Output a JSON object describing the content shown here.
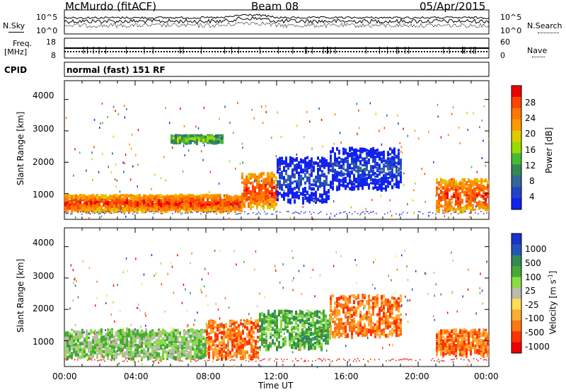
{
  "header": {
    "station": "McMurdo (fitACF)",
    "beam": "Beam 08",
    "date": "05/Apr/2015"
  },
  "noise_panel": {
    "left_label": "N.Sky",
    "right_label": "N.Search",
    "left_ticks": [
      "10^5",
      "10^0"
    ],
    "right_ticks": [
      "10^5",
      "10^0"
    ]
  },
  "freq_panel": {
    "left_label_line1": "Freq.",
    "left_label_line2": "[MHz]",
    "right_label": "Nave",
    "left_ticks": [
      "18",
      "8"
    ],
    "right_ticks": [
      "60",
      "0"
    ]
  },
  "cpid_panel": {
    "label": "CPID",
    "text": "normal (fast) 151 RF"
  },
  "x_axis": {
    "title": "Time UT",
    "ticks": [
      "00:00",
      "04:00",
      "08:00",
      "12:00",
      "16:00",
      "20:00",
      "00:00"
    ]
  },
  "power_panel": {
    "ylabel": "Slant Range [km]",
    "yticks": [
      "4000",
      "3000",
      "2000",
      "1000"
    ],
    "colorbar_label": "Power [dB]",
    "colorbar_ticks": [
      "28",
      "24",
      "20",
      "16",
      "12",
      "8",
      "4"
    ],
    "colorbar_colors": [
      "#ee0000",
      "#ff4400",
      "#ff7700",
      "#ff9900",
      "#ddcc00",
      "#99dd00",
      "#44bb33",
      "#338855",
      "#336699",
      "#2244cc",
      "#1122ee"
    ]
  },
  "velocity_panel": {
    "ylabel": "Slant Range [km]",
    "yticks": [
      "4000",
      "3000",
      "2000",
      "1000"
    ],
    "colorbar_label": "Velocity [m s",
    "colorbar_label_sup": "-1",
    "colorbar_label_end": "]",
    "colorbar_ticks": [
      "1000",
      "500",
      "100",
      "25",
      "-25",
      "-100",
      "-500",
      "-1000"
    ],
    "colorbar_colors": [
      "#1a33cc",
      "#2255bb",
      "#338855",
      "#44aa33",
      "#88dd44",
      "#bbbbaa",
      "#ffdd55",
      "#ffaa33",
      "#ff7711",
      "#ff3300",
      "#ee0000"
    ]
  },
  "chart_data": [
    {
      "type": "heatmap",
      "title": "Power",
      "xlabel": "Time UT",
      "ylabel": "Slant Range [km]",
      "x_range_hours": [
        0,
        24
      ],
      "ylim": [
        180,
        4600
      ],
      "colorbar": {
        "label": "Power [dB]",
        "ticks": [
          28,
          24,
          20,
          16,
          12,
          8,
          4
        ]
      },
      "features": [
        {
          "t_start": 0,
          "t_end": 10,
          "range_min": 500,
          "range_max": 1000,
          "level_dB": 28
        },
        {
          "t_start": 10,
          "t_end": 12,
          "range_min": 600,
          "range_max": 1700,
          "level_dB": 24
        },
        {
          "t_start": 12,
          "t_end": 15,
          "range_min": 800,
          "range_max": 2200,
          "level_dB": 8
        },
        {
          "t_start": 15,
          "t_end": 19,
          "range_min": 1200,
          "range_max": 2500,
          "level_dB": 8
        },
        {
          "t_start": 21,
          "t_end": 24,
          "range_min": 500,
          "range_max": 1500,
          "level_dB": 28
        },
        {
          "t_start": 6,
          "t_end": 9,
          "range_min": 2700,
          "range_max": 2900,
          "level_dB": 18
        }
      ]
    },
    {
      "type": "heatmap",
      "title": "Velocity",
      "xlabel": "Time UT",
      "ylabel": "Slant Range [km]",
      "x_range_hours": [
        0,
        24
      ],
      "ylim": [
        180,
        4600
      ],
      "colorbar": {
        "label": "Velocity [m s-1]",
        "ticks": [
          1000,
          500,
          100,
          25,
          -25,
          -100,
          -500,
          -1000
        ]
      },
      "features": [
        {
          "t_start": 0,
          "t_end": 8,
          "range_min": 500,
          "range_max": 1400,
          "level_ms": 25
        },
        {
          "t_start": 8,
          "t_end": 11,
          "range_min": 500,
          "range_max": 1700,
          "level_ms": -300
        },
        {
          "t_start": 11,
          "t_end": 15,
          "range_min": 800,
          "range_max": 2000,
          "level_ms": 200
        },
        {
          "t_start": 15,
          "t_end": 19,
          "range_min": 1200,
          "range_max": 2500,
          "level_ms": -300
        },
        {
          "t_start": 21,
          "t_end": 24,
          "range_min": 600,
          "range_max": 1400,
          "level_ms": -400
        }
      ]
    }
  ]
}
